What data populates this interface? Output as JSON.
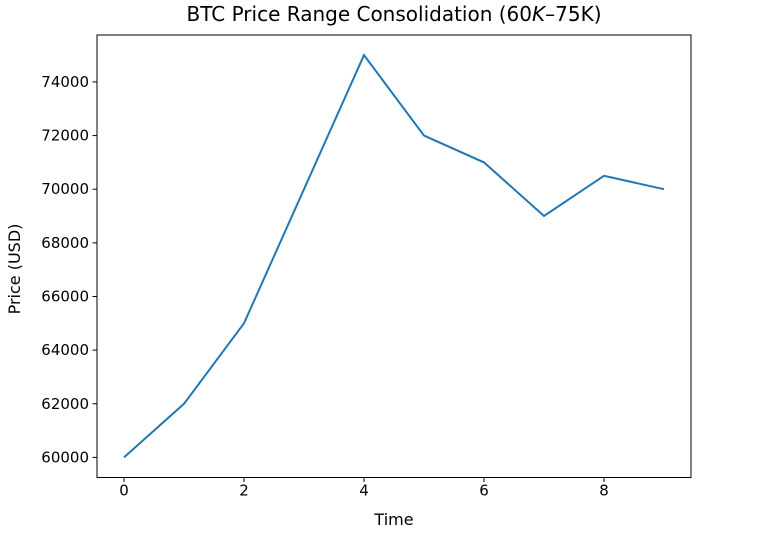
{
  "page": {
    "background_color": "#ffffff"
  },
  "chart_data": {
    "type": "line",
    "title": "BTC Price Range Consolidation (60K–75K)",
    "title_parts": {
      "pre": "BTC Price Range Consolidation (60",
      "italic_k": "K",
      "post": "–75K)"
    },
    "xlabel": "Time",
    "ylabel": "Price (USD)",
    "x": [
      0,
      1,
      2,
      3,
      4,
      5,
      6,
      7,
      8,
      9
    ],
    "values": [
      60000,
      62000,
      65000,
      70000,
      75000,
      72000,
      71000,
      69000,
      70500,
      70000
    ],
    "xlim": [
      -0.45,
      9.45
    ],
    "ylim": [
      59250,
      75750
    ],
    "xticks": [
      0,
      2,
      4,
      6,
      8
    ],
    "yticks": [
      60000,
      62000,
      64000,
      66000,
      68000,
      70000,
      72000,
      74000
    ],
    "line_color": "#1f77b4",
    "axis_color": "#000000",
    "grid": false,
    "legend_position": "none",
    "markers": false
  }
}
